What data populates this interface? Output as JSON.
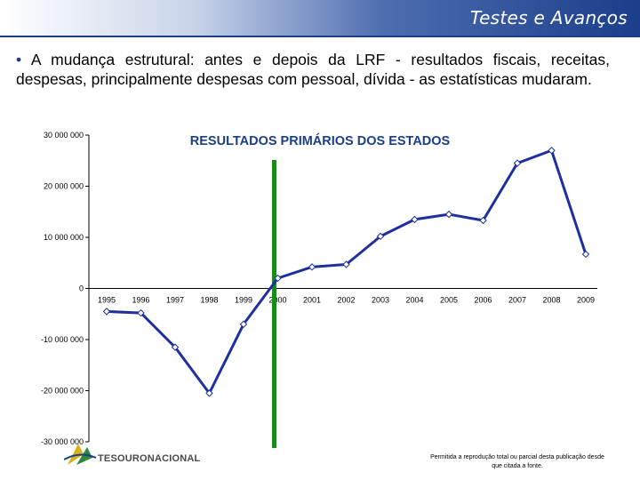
{
  "header": {
    "title": "Testes e Avanços"
  },
  "bullet": {
    "symbol": "•",
    "text": "A mudança estrutural: antes e depois da LRF - resultados fiscais, receitas, despesas, principalmente despesas com pessoal, dívida - as estatísticas mudaram."
  },
  "chart_data": {
    "type": "line",
    "title": "RESULTADOS PRIMÁRIOS DOS ESTADOS",
    "xlabel": "",
    "ylabel": "",
    "categories": [
      "1995",
      "1996",
      "1997",
      "1998",
      "1999",
      "2000",
      "2001",
      "2002",
      "2003",
      "2004",
      "2005",
      "2006",
      "2007",
      "2008",
      "2009"
    ],
    "series": [
      {
        "values": [
          -4500000,
          -4800000,
          -11500000,
          -20500000,
          -7000000,
          2000000,
          4200000,
          4700000,
          10200000,
          13500000,
          14500000,
          13300000,
          24500000,
          27000000,
          6700000
        ]
      }
    ],
    "ylim": [
      -30000000,
      30000000
    ],
    "yticks": [
      -30000000,
      -20000000,
      -10000000,
      0,
      10000000,
      20000000,
      30000000
    ],
    "ytick_labels": [
      "-30 000 000",
      "-20 000 000",
      "-10 000 000",
      "0",
      "10 000 000",
      "20 000 000",
      "30 000 000"
    ],
    "marker_line_at": "2000",
    "colors": {
      "series": "#1f2f9e",
      "marker_line": "#1a8a1a",
      "title": "#1a3e8a"
    }
  },
  "footer": {
    "logo_main": "TESOURO",
    "logo_second": "NACIONAL",
    "note": "Permitida a reprodução total ou parcial desta publicação desde que citada a fonte."
  }
}
